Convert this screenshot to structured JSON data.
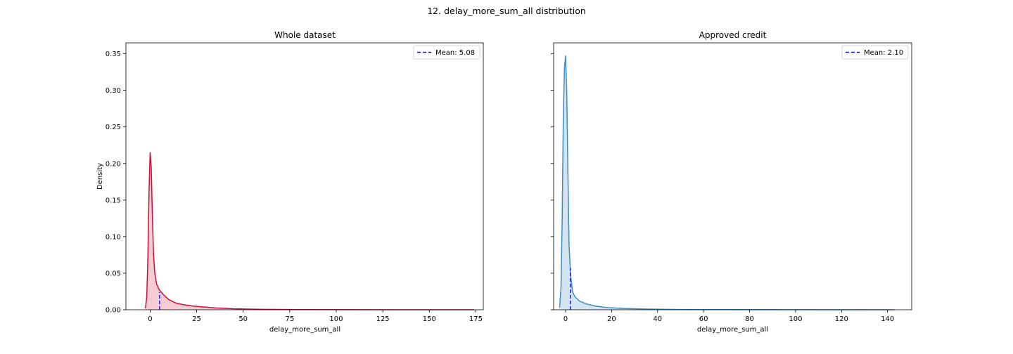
{
  "figure": {
    "suptitle": "12. delay_more_sum_all distribution"
  },
  "chart_data": [
    {
      "type": "area",
      "title": "Whole dataset",
      "xlabel": "delay_more_sum_all",
      "ylabel": "Density",
      "xlim": [
        -13,
        179
      ],
      "ylim": [
        0,
        0.365
      ],
      "xticks": [
        0,
        25,
        50,
        75,
        100,
        125,
        150,
        175
      ],
      "yticks": [
        0.0,
        0.05,
        0.1,
        0.15,
        0.2,
        0.25,
        0.3,
        0.35
      ],
      "ytick_labels": [
        "0.00",
        "0.05",
        "0.10",
        "0.15",
        "0.20",
        "0.25",
        "0.30",
        "0.35"
      ],
      "grid": false,
      "legend_position": "upper right",
      "series": [
        {
          "color": "#c8103a",
          "fill": "#f4c6cf",
          "x": [
            -2.5,
            -1.8,
            -1.2,
            -0.6,
            0,
            0.6,
            1.2,
            1.8,
            2.5,
            3.5,
            5,
            7,
            10,
            14,
            18,
            23,
            28,
            35,
            45,
            60,
            80,
            110,
            140,
            174
          ],
          "y": [
            0.002,
            0.018,
            0.07,
            0.16,
            0.215,
            0.195,
            0.13,
            0.078,
            0.05,
            0.035,
            0.027,
            0.021,
            0.014,
            0.009,
            0.007,
            0.005,
            0.004,
            0.0025,
            0.0013,
            0.0006,
            0.0003,
            0.0001,
            5e-05,
            0.0
          ]
        }
      ],
      "mean": {
        "value": 5.08,
        "density": 0.024,
        "label": "Mean: 5.08",
        "color": "#1a1ae0"
      }
    },
    {
      "type": "area",
      "title": "Approved credit",
      "xlabel": "delay_more_sum_all",
      "ylabel": "",
      "xlim": [
        -5.2,
        150.5
      ],
      "ylim": [
        0,
        0.365
      ],
      "xticks": [
        0,
        20,
        40,
        60,
        80,
        100,
        120,
        140
      ],
      "yticks": [
        0.0,
        0.05,
        0.1,
        0.15,
        0.2,
        0.25,
        0.3,
        0.35
      ],
      "ytick_labels": [],
      "grid": false,
      "legend_position": "upper right",
      "series": [
        {
          "color": "#3e8cc4",
          "fill": "#cfe1ee",
          "x": [
            -2.6,
            -2.0,
            -1.5,
            -1.0,
            -0.5,
            0,
            0.5,
            1.0,
            1.5,
            2.1,
            3,
            4,
            6,
            9,
            13,
            18,
            25,
            35,
            50,
            70,
            100,
            143
          ],
          "y": [
            0.003,
            0.03,
            0.12,
            0.26,
            0.33,
            0.347,
            0.3,
            0.19,
            0.09,
            0.05,
            0.025,
            0.018,
            0.012,
            0.008,
            0.005,
            0.003,
            0.0018,
            0.0009,
            0.0004,
            0.0002,
            0.0001,
            0.0
          ]
        }
      ],
      "mean": {
        "value": 2.1,
        "density": 0.057,
        "label": "Mean: 2.10",
        "color": "#1a1ae0"
      }
    }
  ]
}
